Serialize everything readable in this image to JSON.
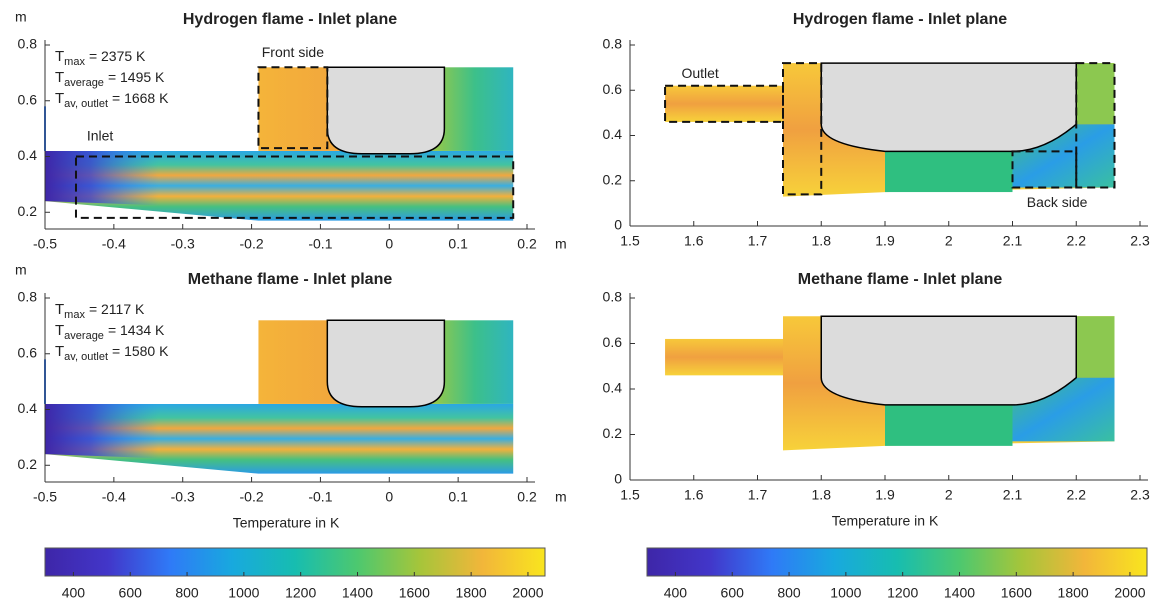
{
  "chart_data": [
    {
      "type": "contour",
      "title": "Hydrogen flame - Inlet plane",
      "xlim": [
        -0.5,
        0.2
      ],
      "xticks": [
        -0.5,
        -0.4,
        -0.3,
        -0.2,
        -0.1,
        0,
        0.1,
        0.2
      ],
      "ylim": [
        0.14,
        0.8
      ],
      "yticks": [
        0.2,
        0.4,
        0.6,
        0.8
      ],
      "x_unit": "m",
      "y_unit": "m",
      "stats": [
        {
          "symbol": "T",
          "sub": "max",
          "text": "= 2375 K"
        },
        {
          "symbol": "T",
          "sub": "average",
          "text": "= 1495 K"
        },
        {
          "symbol": "T",
          "sub": "av, outlet",
          "text": "= 1668 K"
        }
      ],
      "labels": {
        "inlet": "Inlet",
        "front": "Front side"
      }
    },
    {
      "type": "contour",
      "title": "Hydrogen flame - Inlet plane",
      "xlim": [
        1.5,
        2.3
      ],
      "xticks": [
        1.5,
        1.6,
        1.7,
        1.8,
        1.9,
        2,
        2.1,
        2.2,
        2.3
      ],
      "ylim": [
        0,
        0.8
      ],
      "yticks": [
        0,
        0.2,
        0.4,
        0.6,
        0.8
      ],
      "labels": {
        "outlet": "Outlet",
        "back": "Back side"
      }
    },
    {
      "type": "contour",
      "title": "Methane flame - Inlet plane",
      "xlim": [
        -0.5,
        0.2
      ],
      "xticks": [
        -0.5,
        -0.4,
        -0.3,
        -0.2,
        -0.1,
        0,
        0.1,
        0.2
      ],
      "ylim": [
        0.14,
        0.8
      ],
      "yticks": [
        0.2,
        0.4,
        0.6,
        0.8
      ],
      "x_unit": "m",
      "y_unit": "m",
      "xlabel": "Temperature in K",
      "stats": [
        {
          "symbol": "T",
          "sub": "max",
          "text": "= 2117 K"
        },
        {
          "symbol": "T",
          "sub": "average",
          "text": "= 1434 K"
        },
        {
          "symbol": "T",
          "sub": "av, outlet",
          "text": "= 1580 K"
        }
      ]
    },
    {
      "type": "contour",
      "title": "Methane flame - Inlet plane",
      "xlim": [
        1.5,
        2.3
      ],
      "xticks": [
        1.5,
        1.6,
        1.7,
        1.8,
        1.9,
        2,
        2.1,
        2.2,
        2.3
      ],
      "ylim": [
        0,
        0.8
      ],
      "yticks": [
        0,
        0.2,
        0.4,
        0.6,
        0.8
      ],
      "xlabel": "Temperature in K"
    },
    {
      "type": "colorbar",
      "xlim": [
        300,
        2060
      ],
      "xticks": [
        400,
        600,
        800,
        1000,
        1200,
        1400,
        1600,
        1800,
        2000
      ],
      "colors": [
        "#3e26a8",
        "#4236c9",
        "#2f7af7",
        "#18a9de",
        "#17bdb0",
        "#4dc86f",
        "#a6c53a",
        "#f2b63a",
        "#f9e51e"
      ]
    },
    {
      "type": "colorbar",
      "xlim": [
        300,
        2060
      ],
      "xticks": [
        400,
        600,
        800,
        1000,
        1200,
        1400,
        1600,
        1800,
        2000
      ],
      "colors": [
        "#3e26a8",
        "#4236c9",
        "#2f7af7",
        "#18a9de",
        "#17bdb0",
        "#4dc86f",
        "#a6c53a",
        "#f2b63a",
        "#f9e51e"
      ]
    }
  ]
}
